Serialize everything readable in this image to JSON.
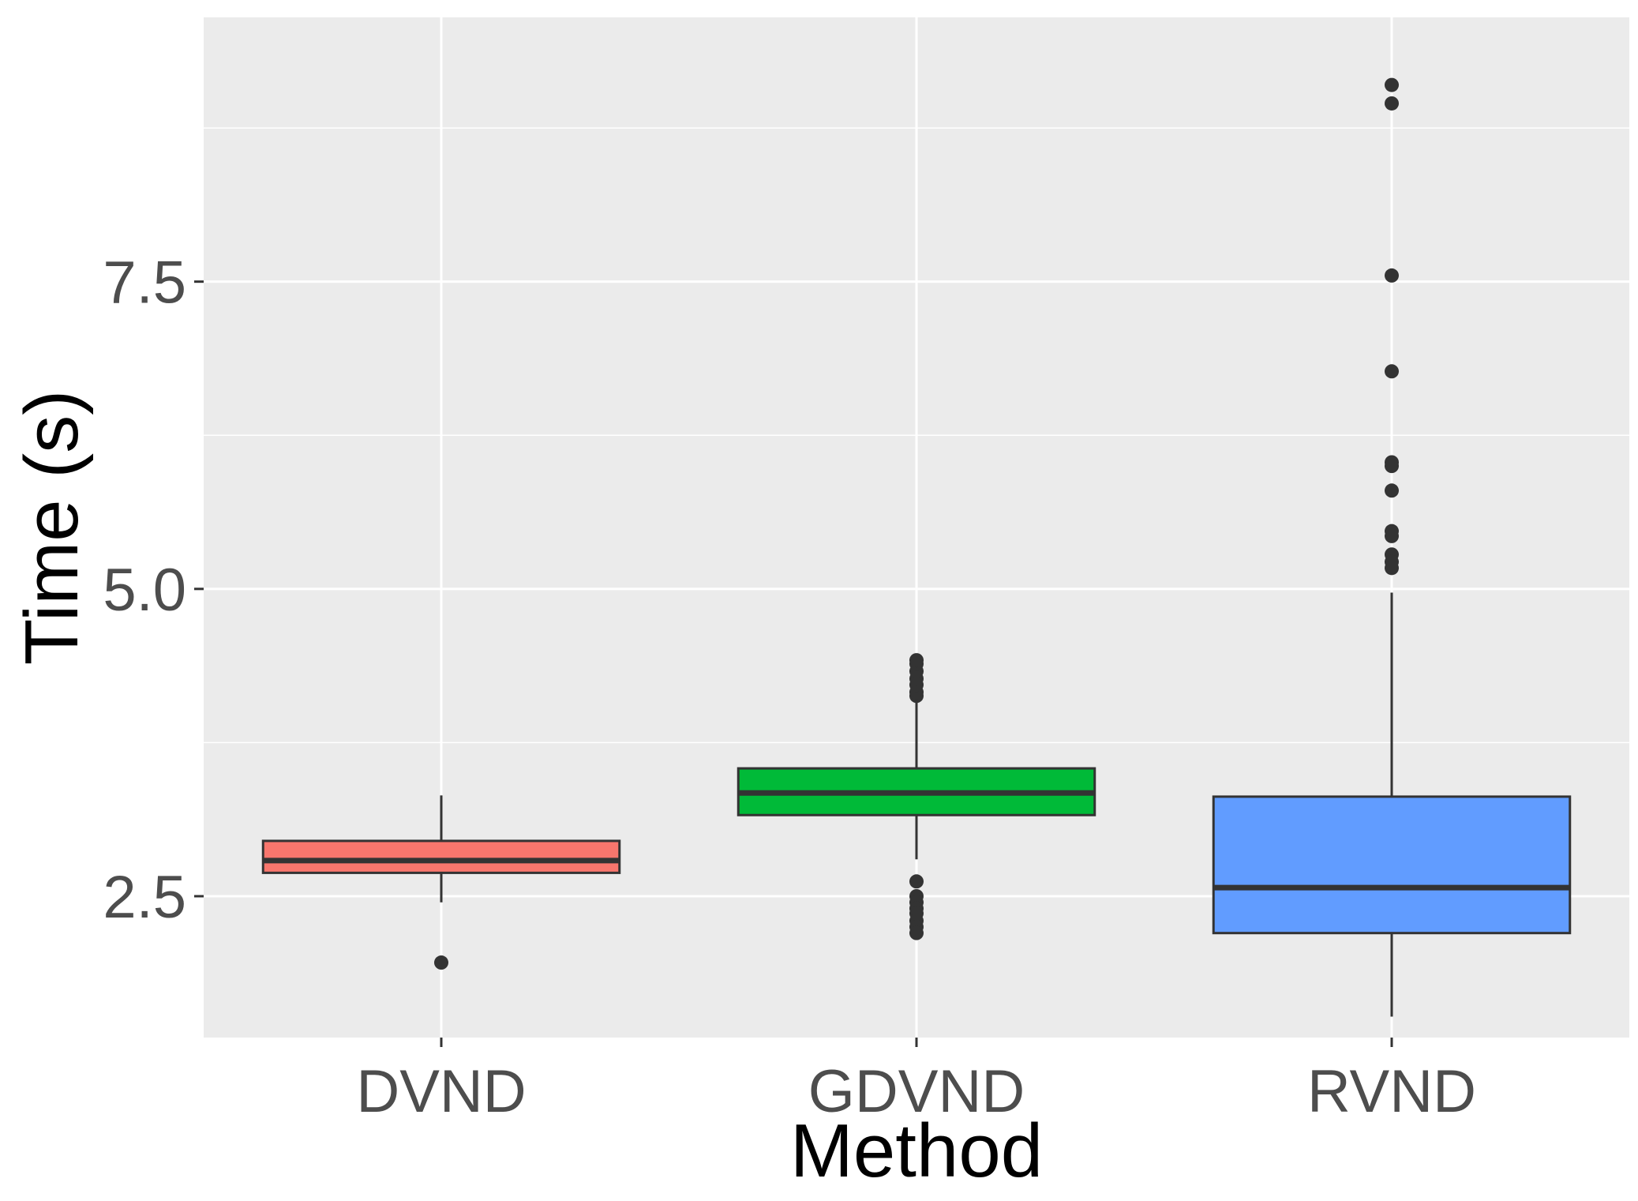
{
  "chart_data": {
    "type": "boxplot",
    "title": "",
    "xlabel": "Method",
    "ylabel": "Time (s)",
    "ylim": [
      1.35,
      9.65
    ],
    "y_ticks": [
      2.5,
      5.0,
      7.5
    ],
    "y_tick_labels": [
      "2.5",
      "5.0",
      "7.5"
    ],
    "y_minor_ticks": [
      1.25,
      3.75,
      6.25,
      8.75
    ],
    "grid": true,
    "legend": "none",
    "panel_background": "#ebebeb",
    "categories": [
      "DVND",
      "GDVND",
      "RVND"
    ],
    "boxes": [
      {
        "name": "DVND",
        "color": "#f8766d",
        "whisker_low": 2.45,
        "q1": 2.69,
        "median": 2.79,
        "q3": 2.95,
        "whisker_high": 3.32,
        "outliers": [
          1.96
        ]
      },
      {
        "name": "GDVND",
        "color": "#00ba38",
        "whisker_low": 2.8,
        "q1": 3.16,
        "median": 3.34,
        "q3": 3.54,
        "whisker_high": 4.1,
        "outliers": [
          4.13,
          4.16,
          4.22,
          4.27,
          4.33,
          4.39,
          4.42,
          2.62,
          2.5,
          2.45,
          2.4,
          2.36,
          2.3,
          2.25,
          2.2
        ]
      },
      {
        "name": "RVND",
        "color": "#619cff",
        "whisker_low": 1.52,
        "q1": 2.2,
        "median": 2.57,
        "q3": 3.31,
        "whisker_high": 4.97,
        "outliers": [
          9.1,
          8.95,
          7.55,
          6.77,
          6.03,
          6.0,
          5.8,
          5.47,
          5.43,
          5.28,
          5.22,
          5.17
        ]
      }
    ]
  }
}
